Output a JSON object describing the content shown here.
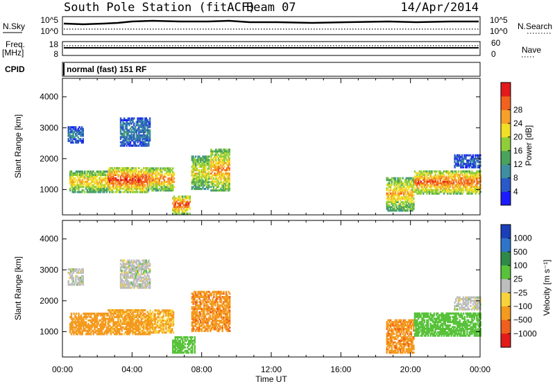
{
  "header": {
    "station": "South Pole Station (fitACF)",
    "beam": "Beam 07",
    "date": "14/Apr/2014"
  },
  "strip_panels": {
    "nsky_label": "N.Sky",
    "nsky_ticks": [
      "10^5",
      "10^0"
    ],
    "nsearch_label": "N.Search",
    "nsearch_ticks": [
      "10^5",
      "10^0"
    ],
    "freq_label_1": "Freq.",
    "freq_label_2": "[MHz]",
    "freq_ticks": [
      "18",
      "8"
    ],
    "nave_label": "Nave",
    "nave_ticks": [
      "60",
      "0"
    ],
    "cpid_label": "CPID",
    "cpid_text": "normal (fast) 151 RF"
  },
  "chart_data": [
    {
      "type": "heatmap",
      "name": "power",
      "ylabel": "Slant Range [km]",
      "xlabel": "",
      "x_ticks": [
        "00:00",
        "04:00",
        "08:00",
        "12:00",
        "16:00",
        "20:00",
        "00:00"
      ],
      "y_ticks": [
        1000,
        2000,
        3000,
        4000
      ],
      "ylim": [
        180,
        4600
      ],
      "xlim_hours": [
        0,
        24
      ],
      "colorbar": {
        "label": "Power [dB]",
        "ticks": [
          "4",
          "8",
          "12",
          "16",
          "20",
          "24",
          "28"
        ],
        "range": [
          0,
          30
        ],
        "colors": [
          "#1b1bff",
          "#2a59c8",
          "#3e8fa0",
          "#4aa35a",
          "#8fce3a",
          "#f1de27",
          "#f7a02a",
          "#f1621e",
          "#e21a1a"
        ]
      },
      "regions": [
        {
          "t0": 0.4,
          "t1": 2.6,
          "r0": 900,
          "r1": 1600,
          "level": 20
        },
        {
          "t0": 2.6,
          "t1": 4.9,
          "r0": 900,
          "r1": 1700,
          "level": 26
        },
        {
          "t0": 4.9,
          "t1": 6.4,
          "r0": 950,
          "r1": 1700,
          "level": 22
        },
        {
          "t0": 6.3,
          "t1": 7.3,
          "r0": 200,
          "r1": 800,
          "level": 25
        },
        {
          "t0": 7.4,
          "t1": 8.4,
          "r0": 1000,
          "r1": 2100,
          "level": 18
        },
        {
          "t0": 8.5,
          "t1": 9.6,
          "r0": 950,
          "r1": 2300,
          "level": 22
        },
        {
          "t0": 18.6,
          "t1": 20.2,
          "r0": 300,
          "r1": 1400,
          "level": 20
        },
        {
          "t0": 20.2,
          "t1": 24.0,
          "r0": 850,
          "r1": 1600,
          "level": 24
        },
        {
          "t0": 0.3,
          "t1": 1.2,
          "r0": 2500,
          "r1": 3000,
          "level": 8
        },
        {
          "t0": 3.3,
          "t1": 5.0,
          "r0": 2400,
          "r1": 3300,
          "level": 8
        },
        {
          "t0": 22.5,
          "t1": 24.0,
          "r0": 1700,
          "r1": 2100,
          "level": 6
        }
      ]
    },
    {
      "type": "heatmap",
      "name": "velocity",
      "ylabel": "Slant Range [km]",
      "xlabel": "Time UT",
      "x_ticks": [
        "00:00",
        "04:00",
        "08:00",
        "12:00",
        "16:00",
        "20:00",
        "00:00"
      ],
      "y_ticks": [
        1000,
        2000,
        3000,
        4000
      ],
      "ylim": [
        180,
        4600
      ],
      "xlim_hours": [
        0,
        24
      ],
      "colorbar": {
        "label": "Velocity [m s⁻¹]",
        "ticks": [
          "1000",
          "500",
          "100",
          "25",
          "−25",
          "−100",
          "−500",
          "−1000"
        ],
        "colors": [
          "#1b3fb8",
          "#2e74c9",
          "#2f8a4a",
          "#58c23a",
          "#bdbdbd",
          "#f7d23a",
          "#f49a1e",
          "#f0601c",
          "#e21a1a"
        ]
      },
      "regions": [
        {
          "t0": 0.4,
          "t1": 2.6,
          "r0": 900,
          "r1": 1600,
          "level": -200
        },
        {
          "t0": 2.6,
          "t1": 5.0,
          "r0": 900,
          "r1": 1700,
          "level": -150
        },
        {
          "t0": 5.0,
          "t1": 6.4,
          "r0": 950,
          "r1": 1700,
          "level": -100
        },
        {
          "t0": 6.3,
          "t1": 7.6,
          "r0": 300,
          "r1": 800,
          "level": 60
        },
        {
          "t0": 7.4,
          "t1": 9.6,
          "r0": 1000,
          "r1": 2300,
          "level": -400
        },
        {
          "t0": 18.6,
          "t1": 20.2,
          "r0": 300,
          "r1": 1400,
          "level": -400
        },
        {
          "t0": 20.2,
          "t1": 24.0,
          "r0": 850,
          "r1": 1600,
          "level": 60
        },
        {
          "t0": 0.3,
          "t1": 1.2,
          "r0": 2500,
          "r1": 3000,
          "level": 0
        },
        {
          "t0": 3.3,
          "t1": 5.0,
          "r0": 2400,
          "r1": 3300,
          "level": 0
        },
        {
          "t0": 22.5,
          "t1": 24.0,
          "r0": 1700,
          "r1": 2100,
          "level": 0
        }
      ]
    }
  ]
}
